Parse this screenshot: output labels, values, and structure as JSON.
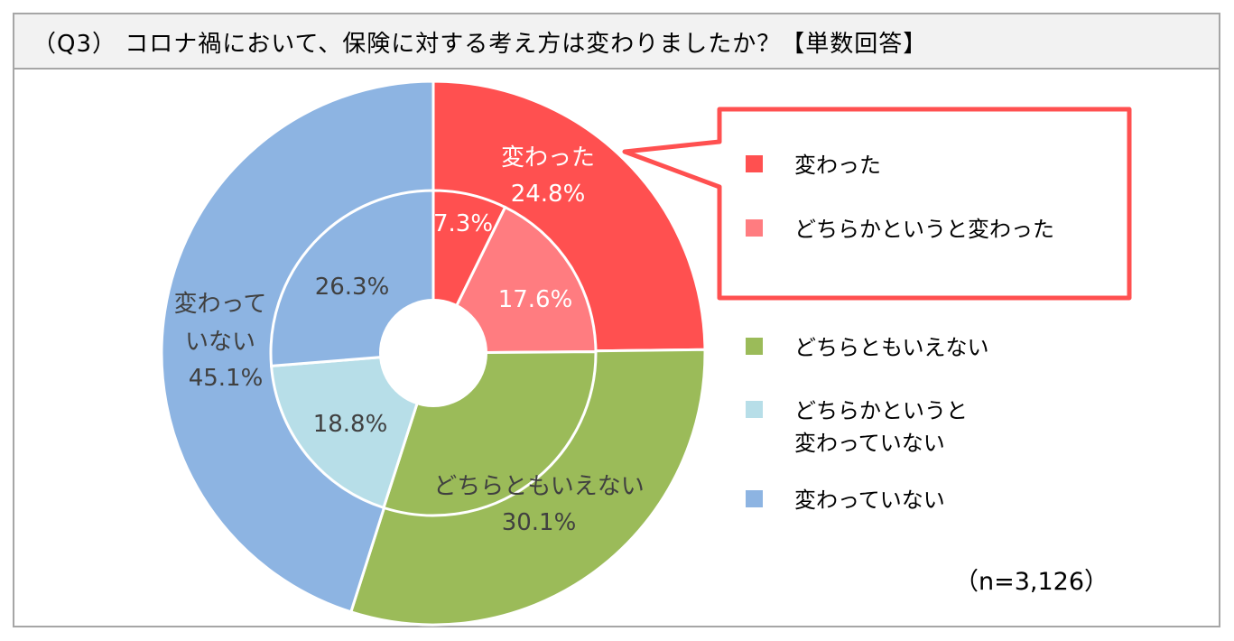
{
  "title": "（Q3） コロナ禍において、保険に対する考え方は変わりましたか？【単数回答】",
  "sample_size": "（n=3,126）",
  "colors": {
    "changed": "#FF5050",
    "somewhat_changed": "#FF7C80",
    "neutral": "#9BBB59",
    "somewhat_unchanged": "#B7DEE8",
    "unchanged": "#8DB4E2",
    "callout_border": "#FF5050",
    "frame_border": "#A6A6A6",
    "header_bg": "#F2F2F2"
  },
  "legend": {
    "items": [
      {
        "label": "変わった",
        "color": "#FF5050",
        "in_callout": true
      },
      {
        "label": "どちらかというと変わった",
        "color": "#FF7C80",
        "in_callout": true
      },
      {
        "label": "どちらともいえない",
        "color": "#9BBB59",
        "in_callout": false
      },
      {
        "label": "どちらかというと\n変わっていない",
        "color": "#B7DEE8",
        "in_callout": false
      },
      {
        "label": "変わっていない",
        "color": "#8DB4E2",
        "in_callout": false
      }
    ]
  },
  "chart_data": {
    "type": "pie",
    "subtype": "nested-donut",
    "title": "（Q3） コロナ禍において、保険に対する考え方は変わりましたか？【単数回答】",
    "n": 3126,
    "outer_ring": {
      "categories": [
        "変わった",
        "どちらともいえない",
        "変わっていない"
      ],
      "values": [
        24.8,
        30.1,
        45.1
      ],
      "colors": [
        "#FF5050",
        "#9BBB59",
        "#8DB4E2"
      ],
      "labels": [
        {
          "lines": [
            "変わった",
            "24.8%"
          ],
          "color": "#FFFFFF"
        },
        {
          "lines": [
            "どちらともいえない",
            "30.1%"
          ],
          "color": "#404040"
        },
        {
          "lines": [
            "変わって",
            "いない",
            "45.1%"
          ],
          "color": "#404040"
        }
      ]
    },
    "inner_ring": {
      "categories": [
        "変わった",
        "どちらかというと変わった",
        "どちらともいえない",
        "どちらかというと変わっていない",
        "変わっていない"
      ],
      "values": [
        7.3,
        17.6,
        30.1,
        18.8,
        26.3
      ],
      "colors": [
        "#FF5050",
        "#FF7C80",
        "#9BBB59",
        "#B7DEE8",
        "#8DB4E2"
      ],
      "labels": [
        {
          "text": "7.3%",
          "color": "#FFFFFF"
        },
        {
          "text": "17.6%",
          "color": "#FFFFFF"
        },
        {
          "text": "",
          "color": "#404040"
        },
        {
          "text": "18.8%",
          "color": "#404040"
        },
        {
          "text": "26.3%",
          "color": "#404040"
        }
      ]
    },
    "unit": "%",
    "legend_position": "right"
  }
}
